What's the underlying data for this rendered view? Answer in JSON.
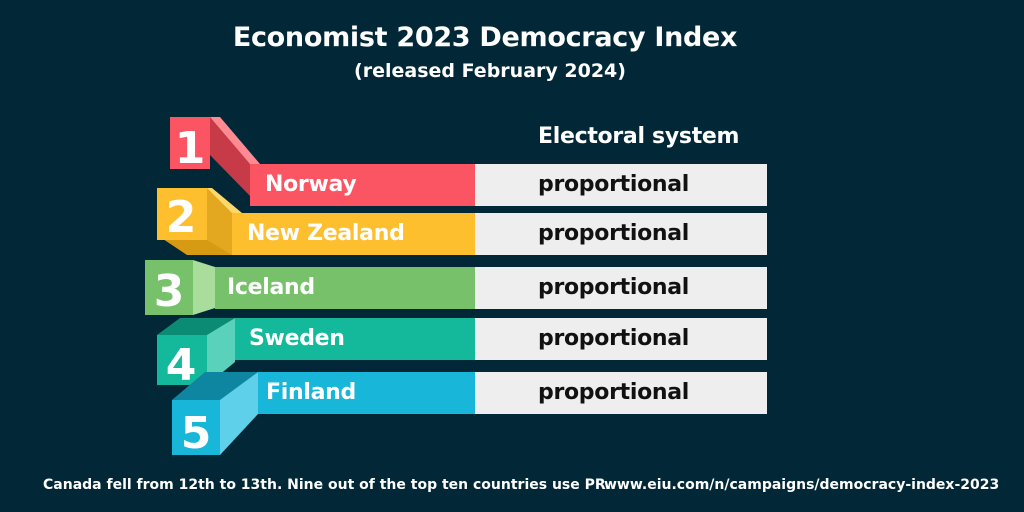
{
  "title": "Economist 2023 Democracy Index",
  "subtitle": "(released February 2024)",
  "column_header": "Electoral system",
  "rows": [
    {
      "rank": "1",
      "country": "Norway",
      "system": "proportional",
      "color": "#fb5463"
    },
    {
      "rank": "2",
      "country": "New Zealand",
      "system": "proportional",
      "color": "#fdbf2d"
    },
    {
      "rank": "3",
      "country": "Iceland",
      "system": "proportional",
      "color": "#77c16a"
    },
    {
      "rank": "4",
      "country": "Sweden",
      "system": "proportional",
      "color": "#13b99a"
    },
    {
      "rank": "5",
      "country": "Finland",
      "system": "proportional",
      "color": "#18b6d8"
    }
  ],
  "footer": {
    "note": "Canada fell from 12th to 13th. Nine out of the top ten countries use PR.",
    "source": "www.eiu.com/n/campaigns/democracy-index-2023"
  }
}
